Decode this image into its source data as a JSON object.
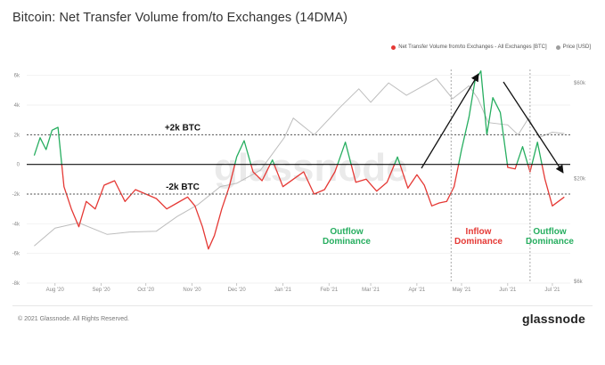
{
  "header": {
    "title": "Bitcoin: Net Transfer Volume from/to Exchanges (14DMA)"
  },
  "legend": {
    "items": [
      {
        "label": "Net Transfer Volume from/to Exchanges - All Exchanges [BTC]",
        "color": "#e53935"
      },
      {
        "label": "Price [USD]",
        "color": "#9e9e9e"
      }
    ]
  },
  "footer": {
    "copyright": "© 2021 Glassnode. All Rights Reserved.",
    "brand": "glassnode"
  },
  "watermark": "glassnode",
  "colors": {
    "positive": "#27ae60",
    "negative": "#e53935",
    "price": "#bdbdbd",
    "zero_line": "#111111",
    "ref_line": "#555555",
    "separator": "#aaaaaa",
    "arrow": "#111111"
  },
  "chart_data": {
    "type": "line",
    "title": "Bitcoin: Net Transfer Volume from/to Exchanges (14DMA)",
    "x_tick_labels": [
      "Aug '20",
      "Sep '20",
      "Oct '20",
      "Nov '20",
      "Dec '20",
      "Jan '21",
      "Feb '21",
      "Mar '21",
      "Apr '21",
      "May '21",
      "Jun '21",
      "Jul '21"
    ],
    "y_left_tick_labels": [
      "6k",
      "4k",
      "2k",
      "0",
      "-2k",
      "-4k",
      "-6k",
      "-8k"
    ],
    "y_right_tick_labels": [
      "$60k",
      "$20k",
      "$6k"
    ],
    "ylim_left": [
      -8000,
      6400
    ],
    "y_right_scale": "log",
    "reference_lines": [
      {
        "value": 2000,
        "label": "+2k BTC"
      },
      {
        "value": -2000,
        "label": "-2k BTC"
      },
      {
        "value": 0,
        "label": ""
      }
    ],
    "annotations": [
      {
        "text": [
          "Outflow",
          "Dominance"
        ],
        "color": "#27ae60"
      },
      {
        "text": [
          "Inflow",
          "Dominance"
        ],
        "color": "#e53935"
      },
      {
        "text": [
          "Outflow",
          "Dominance"
        ],
        "color": "#27ae60"
      }
    ],
    "series": [
      {
        "name": "Net Transfer Volume from/to Exchanges - All Exchanges [BTC]",
        "axis": "left",
        "x": [
          "2020-07-18",
          "2020-07-22",
          "2020-07-26",
          "2020-07-30",
          "2020-08-03",
          "2020-08-07",
          "2020-08-12",
          "2020-08-17",
          "2020-08-22",
          "2020-08-28",
          "2020-09-03",
          "2020-09-10",
          "2020-09-17",
          "2020-09-24",
          "2020-10-01",
          "2020-10-08",
          "2020-10-15",
          "2020-10-22",
          "2020-10-29",
          "2020-11-03",
          "2020-11-08",
          "2020-11-12",
          "2020-11-16",
          "2020-11-21",
          "2020-11-26",
          "2020-12-01",
          "2020-12-06",
          "2020-12-12",
          "2020-12-18",
          "2020-12-25",
          "2021-01-01",
          "2021-01-08",
          "2021-01-15",
          "2021-01-22",
          "2021-01-29",
          "2021-02-05",
          "2021-02-12",
          "2021-02-19",
          "2021-02-26",
          "2021-03-05",
          "2021-03-12",
          "2021-03-19",
          "2021-03-26",
          "2021-04-01",
          "2021-04-06",
          "2021-04-11",
          "2021-04-16",
          "2021-04-21",
          "2021-04-26",
          "2021-05-01",
          "2021-05-06",
          "2021-05-10",
          "2021-05-14",
          "2021-05-18",
          "2021-05-22",
          "2021-05-27",
          "2021-06-01",
          "2021-06-06",
          "2021-06-11",
          "2021-06-16",
          "2021-06-21",
          "2021-06-26",
          "2021-07-01",
          "2021-07-05",
          "2021-07-09"
        ],
        "values": [
          600,
          1800,
          1000,
          2300,
          2500,
          -1500,
          -3000,
          -4200,
          -2500,
          -3000,
          -1400,
          -1100,
          -2500,
          -1700,
          -2000,
          -2300,
          -3000,
          -2600,
          -2200,
          -2800,
          -4200,
          -5700,
          -4800,
          -3000,
          -1500,
          500,
          1600,
          -500,
          -1100,
          300,
          -1500,
          -1000,
          -500,
          -2000,
          -1700,
          -500,
          1500,
          -1200,
          -1000,
          -1800,
          -1200,
          500,
          -1600,
          -700,
          -1400,
          -2800,
          -2600,
          -2500,
          -1500,
          1000,
          3200,
          5600,
          6300,
          2000,
          4500,
          3500,
          -200,
          -300,
          1200,
          -500,
          1500,
          -1000,
          -2800,
          -2500,
          -2200
        ]
      },
      {
        "name": "Price [USD]",
        "axis": "right",
        "x": [
          "2020-07-18",
          "2020-08-01",
          "2020-08-17",
          "2020-09-05",
          "2020-09-20",
          "2020-10-08",
          "2020-10-22",
          "2020-11-05",
          "2020-11-20",
          "2020-12-01",
          "2020-12-17",
          "2021-01-02",
          "2021-01-08",
          "2021-01-22",
          "2021-02-08",
          "2021-02-21",
          "2021-03-01",
          "2021-03-13",
          "2021-03-25",
          "2021-04-14",
          "2021-04-25",
          "2021-05-06",
          "2021-05-12",
          "2021-05-19",
          "2021-06-01",
          "2021-06-08",
          "2021-06-15",
          "2021-06-22",
          "2021-07-01",
          "2021-07-09"
        ],
        "values": [
          9200,
          11300,
          12000,
          10500,
          10800,
          10900,
          12900,
          14800,
          18200,
          18900,
          22000,
          32000,
          40000,
          33000,
          45000,
          56000,
          48000,
          60000,
          52000,
          63000,
          50000,
          58000,
          50000,
          38000,
          37000,
          33000,
          40000,
          32000,
          34000,
          33500
        ]
      }
    ]
  }
}
